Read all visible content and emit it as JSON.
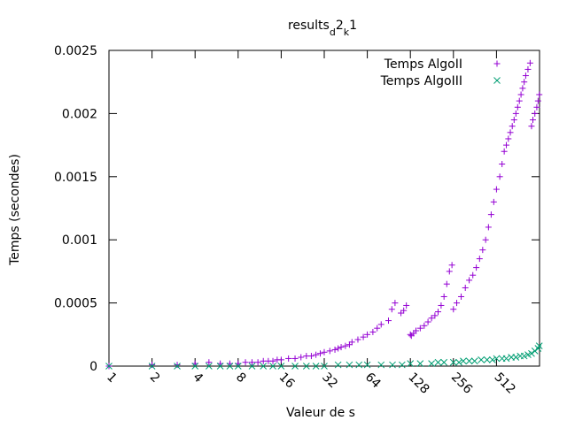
{
  "chart_data": {
    "type": "scatter",
    "title": {
      "parts": [
        {
          "text": "results",
          "shift": "base"
        },
        {
          "text": "d",
          "shift": "sub"
        },
        {
          "text": "2",
          "shift": "base"
        },
        {
          "text": "k",
          "shift": "sub"
        },
        {
          "text": "1",
          "shift": "base"
        }
      ]
    },
    "xlabel": "Valeur de s",
    "ylabel": "Temps (secondes)",
    "x_scale": "log2",
    "xlim": [
      1,
      1024
    ],
    "ylim": [
      0,
      0.0025
    ],
    "x_tick_labels": [
      "1",
      "2",
      "4",
      "8",
      "16",
      "32",
      "64",
      "128",
      "256",
      "512"
    ],
    "x_ticks": [
      1,
      2,
      4,
      8,
      16,
      32,
      64,
      128,
      256,
      512
    ],
    "y_tick_labels": [
      "0",
      "0.0005",
      "0.001",
      "0.0015",
      "0.002",
      "0.0025"
    ],
    "y_ticks": [
      0,
      0.0005,
      0.001,
      0.0015,
      0.002,
      0.0025
    ],
    "grid": false,
    "legend_position": "top-right",
    "series": [
      {
        "name": "Temps AlgoII",
        "marker": "plus",
        "color": "#9400d3",
        "points": [
          [
            1,
            0.0
          ],
          [
            2,
            1e-05
          ],
          [
            3,
            1e-05
          ],
          [
            4,
            2e-05
          ],
          [
            5,
            3e-05
          ],
          [
            6,
            2e-05
          ],
          [
            7,
            2e-05
          ],
          [
            8,
            2e-05
          ],
          [
            9,
            3e-05
          ],
          [
            10,
            3e-05
          ],
          [
            11,
            3e-05
          ],
          [
            12,
            4e-05
          ],
          [
            13,
            4e-05
          ],
          [
            14,
            4e-05
          ],
          [
            15,
            5e-05
          ],
          [
            16,
            5e-05
          ],
          [
            18,
            6e-05
          ],
          [
            20,
            6e-05
          ],
          [
            22,
            7e-05
          ],
          [
            24,
            8e-05
          ],
          [
            26,
            8e-05
          ],
          [
            28,
            9e-05
          ],
          [
            30,
            0.0001
          ],
          [
            32,
            0.00011
          ],
          [
            35,
            0.00012
          ],
          [
            38,
            0.00013
          ],
          [
            40,
            0.00014
          ],
          [
            42,
            0.00015
          ],
          [
            45,
            0.00016
          ],
          [
            48,
            0.00017
          ],
          [
            50,
            0.00019
          ],
          [
            55,
            0.00021
          ],
          [
            60,
            0.00023
          ],
          [
            64,
            0.00025
          ],
          [
            70,
            0.00027
          ],
          [
            75,
            0.0003
          ],
          [
            80,
            0.00033
          ],
          [
            90,
            0.00036
          ],
          [
            95,
            0.00045
          ],
          [
            100,
            0.0005
          ],
          [
            110,
            0.00042
          ],
          [
            115,
            0.00044
          ],
          [
            120,
            0.00048
          ],
          [
            128,
            0.00025
          ],
          [
            130,
            0.00024
          ],
          [
            135,
            0.00026
          ],
          [
            140,
            0.00028
          ],
          [
            150,
            0.0003
          ],
          [
            160,
            0.00032
          ],
          [
            170,
            0.00035
          ],
          [
            180,
            0.00038
          ],
          [
            190,
            0.0004
          ],
          [
            200,
            0.00043
          ],
          [
            210,
            0.00048
          ],
          [
            220,
            0.00055
          ],
          [
            230,
            0.00065
          ],
          [
            240,
            0.00075
          ],
          [
            250,
            0.0008
          ],
          [
            256,
            0.00045
          ],
          [
            270,
            0.0005
          ],
          [
            290,
            0.00055
          ],
          [
            310,
            0.00062
          ],
          [
            330,
            0.00068
          ],
          [
            350,
            0.00072
          ],
          [
            370,
            0.00078
          ],
          [
            390,
            0.00085
          ],
          [
            410,
            0.00092
          ],
          [
            430,
            0.001
          ],
          [
            450,
            0.0011
          ],
          [
            470,
            0.0012
          ],
          [
            490,
            0.0013
          ],
          [
            512,
            0.0014
          ],
          [
            540,
            0.0015
          ],
          [
            560,
            0.0016
          ],
          [
            580,
            0.0017
          ],
          [
            600,
            0.00175
          ],
          [
            620,
            0.0018
          ],
          [
            640,
            0.00185
          ],
          [
            660,
            0.0019
          ],
          [
            680,
            0.00195
          ],
          [
            700,
            0.002
          ],
          [
            720,
            0.00205
          ],
          [
            740,
            0.0021
          ],
          [
            760,
            0.00215
          ],
          [
            780,
            0.0022
          ],
          [
            800,
            0.00225
          ],
          [
            820,
            0.0023
          ],
          [
            850,
            0.00235
          ],
          [
            880,
            0.0024
          ],
          [
            900,
            0.0019
          ],
          [
            920,
            0.00195
          ],
          [
            950,
            0.002
          ],
          [
            980,
            0.00205
          ],
          [
            1000,
            0.0021
          ],
          [
            1020,
            0.00215
          ]
        ]
      },
      {
        "name": "Temps AlgoIII",
        "marker": "cross",
        "color": "#009e73",
        "points": [
          [
            1,
            0.0
          ],
          [
            2,
            0.0
          ],
          [
            3,
            0.0
          ],
          [
            4,
            0.0
          ],
          [
            5,
            0.0
          ],
          [
            6,
            0.0
          ],
          [
            7,
            0.0
          ],
          [
            8,
            0.0
          ],
          [
            10,
            0.0
          ],
          [
            12,
            0.0
          ],
          [
            14,
            0.0
          ],
          [
            16,
            0.0
          ],
          [
            20,
            0.0
          ],
          [
            24,
            0.0
          ],
          [
            28,
            0.0
          ],
          [
            32,
            0.0
          ],
          [
            40,
            1e-05
          ],
          [
            48,
            1e-05
          ],
          [
            56,
            1e-05
          ],
          [
            64,
            1e-05
          ],
          [
            80,
            1e-05
          ],
          [
            96,
            1e-05
          ],
          [
            112,
            1e-05
          ],
          [
            128,
            2e-05
          ],
          [
            150,
            2e-05
          ],
          [
            180,
            2e-05
          ],
          [
            200,
            3e-05
          ],
          [
            220,
            3e-05
          ],
          [
            256,
            3e-05
          ],
          [
            280,
            3e-05
          ],
          [
            300,
            4e-05
          ],
          [
            330,
            4e-05
          ],
          [
            360,
            4e-05
          ],
          [
            400,
            5e-05
          ],
          [
            440,
            5e-05
          ],
          [
            480,
            5e-05
          ],
          [
            512,
            6e-05
          ],
          [
            560,
            6e-05
          ],
          [
            600,
            6e-05
          ],
          [
            650,
            7e-05
          ],
          [
            700,
            7e-05
          ],
          [
            750,
            8e-05
          ],
          [
            800,
            8e-05
          ],
          [
            850,
            9e-05
          ],
          [
            900,
            0.0001
          ],
          [
            950,
            0.00012
          ],
          [
            1000,
            0.00014
          ],
          [
            1020,
            0.00016
          ]
        ]
      }
    ]
  }
}
